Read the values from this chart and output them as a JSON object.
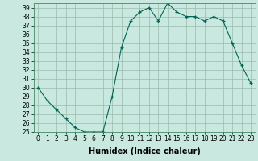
{
  "x": [
    0,
    1,
    2,
    3,
    4,
    5,
    6,
    7,
    8,
    9,
    10,
    11,
    12,
    13,
    14,
    15,
    16,
    17,
    18,
    19,
    20,
    21,
    22,
    23
  ],
  "y": [
    30.0,
    28.5,
    27.5,
    26.5,
    25.5,
    25.0,
    25.0,
    25.0,
    29.0,
    34.5,
    37.5,
    38.5,
    39.0,
    37.5,
    39.5,
    38.5,
    38.0,
    38.0,
    37.5,
    38.0,
    37.5,
    35.0,
    32.5,
    30.5
  ],
  "xlabel": "Humidex (Indice chaleur)",
  "bg_color": "#c8e8e0",
  "line_color": "#006655",
  "marker_color": "#006655",
  "grid_color": "#99bbaa",
  "xlim": [
    -0.5,
    23.5
  ],
  "ylim": [
    25,
    39.5
  ],
  "yticks": [
    25,
    26,
    27,
    28,
    29,
    30,
    31,
    32,
    33,
    34,
    35,
    36,
    37,
    38,
    39
  ],
  "xticks": [
    0,
    1,
    2,
    3,
    4,
    5,
    6,
    7,
    8,
    9,
    10,
    11,
    12,
    13,
    14,
    15,
    16,
    17,
    18,
    19,
    20,
    21,
    22,
    23
  ],
  "tick_fontsize": 5.5,
  "label_fontsize": 7
}
